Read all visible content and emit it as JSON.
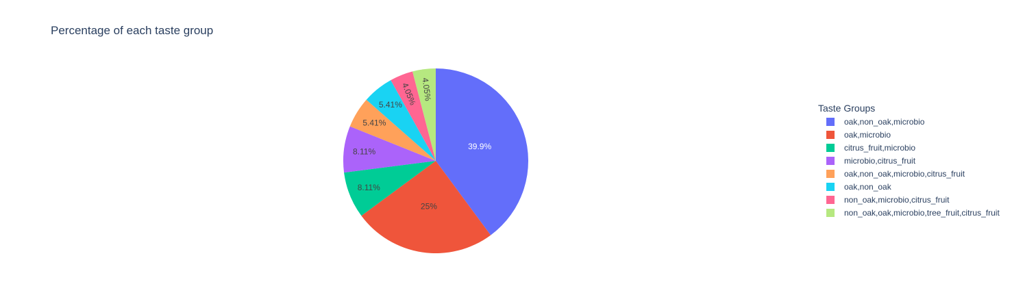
{
  "chart_data": {
    "type": "pie",
    "title": "Percentage of each taste group",
    "legend_title": "Taste Groups",
    "legend_position": "right",
    "direction": "clockwise",
    "start_angle": "top",
    "text_info": "percent",
    "slices": [
      {
        "label": "oak,non_oak,microbio",
        "value": 39.9,
        "text": "39.9%",
        "color": "#636efa",
        "text_color": "#ffffff"
      },
      {
        "label": "oak,microbio",
        "value": 25,
        "text": "25%",
        "color": "#EF553B",
        "text_color": "#444444"
      },
      {
        "label": "citrus_fruit,microbio",
        "value": 8.11,
        "text": "8.11%",
        "color": "#00cc96",
        "text_color": "#444444"
      },
      {
        "label": "microbio,citrus_fruit",
        "value": 8.11,
        "text": "8.11%",
        "color": "#ab63fa",
        "text_color": "#444444"
      },
      {
        "label": "oak,non_oak,microbio,citrus_fruit",
        "value": 5.41,
        "text": "5.41%",
        "color": "#FFA15A",
        "text_color": "#444444"
      },
      {
        "label": "oak,non_oak",
        "value": 5.41,
        "text": "5.41%",
        "color": "#19d3f3",
        "text_color": "#444444"
      },
      {
        "label": "non_oak,microbio,citrus_fruit",
        "value": 4.05,
        "text": "4.05%",
        "color": "#FF6692",
        "text_color": "#444444"
      },
      {
        "label": "non_oak,oak,microbio,tree_fruit,citrus_fruit",
        "value": 4.05,
        "text": "4.05%",
        "color": "#B6E880",
        "text_color": "#444444"
      }
    ]
  }
}
